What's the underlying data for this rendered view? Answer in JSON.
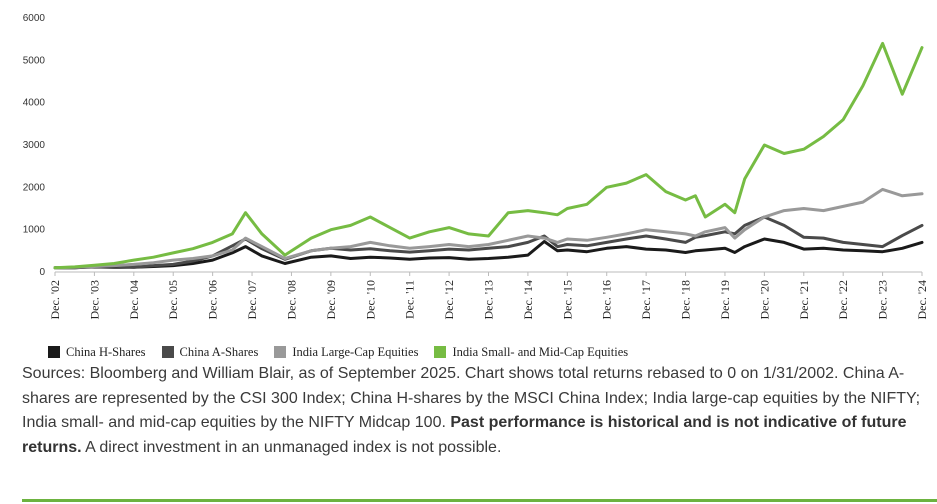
{
  "chart_data": {
    "type": "line",
    "title": "",
    "xlabel": "",
    "ylabel": "",
    "ylim": [
      0,
      6000
    ],
    "yticks": [
      0,
      1000,
      2000,
      3000,
      4000,
      5000,
      6000
    ],
    "xlim": [
      "2002-12",
      "2024-12"
    ],
    "xticks": [
      "Dec. '02",
      "Dec. '03",
      "Dec. '04",
      "Dec. '05",
      "Dec. '06",
      "Dec. '07",
      "Dec. '08",
      "Dec. '09",
      "Dec. '10",
      "Dec. '11",
      "Dec. '12",
      "Dec. '13",
      "Dec. '14",
      "Dec. '15",
      "Dec. '16",
      "Dec. '17",
      "Dec. '18",
      "Dec. '19",
      "Dec. '20",
      "Dec. '21",
      "Dec. '22",
      "Dec. '23",
      "Dec. '24"
    ],
    "grid": false,
    "legend_position": "bottom-left",
    "x": [
      "2002-12",
      "2003-06",
      "2003-12",
      "2004-06",
      "2004-12",
      "2005-06",
      "2005-12",
      "2006-06",
      "2006-12",
      "2007-06",
      "2007-10",
      "2008-03",
      "2008-10",
      "2009-06",
      "2009-12",
      "2010-06",
      "2010-12",
      "2011-06",
      "2011-12",
      "2012-06",
      "2012-12",
      "2013-06",
      "2013-12",
      "2014-06",
      "2014-12",
      "2015-05",
      "2015-09",
      "2015-12",
      "2016-06",
      "2016-12",
      "2017-06",
      "2017-12",
      "2018-06",
      "2018-12",
      "2019-03",
      "2019-06",
      "2019-12",
      "2020-03",
      "2020-06",
      "2020-12",
      "2021-06",
      "2021-12",
      "2022-06",
      "2022-12",
      "2023-06",
      "2023-12",
      "2024-06",
      "2024-12"
    ],
    "series": [
      {
        "name": "China H-Shares",
        "color": "#1a1a1a",
        "values": [
          100,
          100,
          120,
          110,
          110,
          130,
          150,
          200,
          280,
          450,
          600,
          380,
          200,
          350,
          380,
          320,
          350,
          330,
          300,
          330,
          340,
          300,
          320,
          350,
          400,
          720,
          500,
          520,
          480,
          560,
          600,
          540,
          520,
          460,
          500,
          520,
          560,
          460,
          600,
          780,
          700,
          540,
          560,
          520,
          500,
          480,
          560,
          700
        ]
      },
      {
        "name": "China A-Shares",
        "color": "#4a4a4a",
        "values": [
          100,
          100,
          130,
          140,
          110,
          150,
          180,
          260,
          380,
          620,
          780,
          550,
          300,
          500,
          560,
          520,
          550,
          500,
          470,
          500,
          540,
          520,
          560,
          600,
          700,
          850,
          600,
          650,
          620,
          700,
          780,
          850,
          780,
          700,
          820,
          860,
          950,
          900,
          1100,
          1300,
          1100,
          820,
          800,
          700,
          650,
          600,
          860,
          1100
        ]
      },
      {
        "name": "India Large-Cap Equities",
        "color": "#999999",
        "values": [
          100,
          110,
          130,
          150,
          180,
          220,
          280,
          320,
          380,
          520,
          800,
          600,
          320,
          500,
          560,
          600,
          700,
          620,
          560,
          600,
          650,
          600,
          650,
          750,
          850,
          800,
          700,
          780,
          750,
          820,
          900,
          1000,
          950,
          900,
          850,
          950,
          1050,
          800,
          1000,
          1300,
          1450,
          1500,
          1450,
          1550,
          1650,
          1950,
          1800,
          1850
        ]
      },
      {
        "name": "India Small- and Mid-Cap Equities",
        "color": "#76bc43",
        "values": [
          100,
          120,
          160,
          200,
          280,
          350,
          450,
          550,
          700,
          900,
          1400,
          900,
          400,
          800,
          1000,
          1100,
          1300,
          1050,
          800,
          950,
          1050,
          900,
          850,
          1400,
          1450,
          1400,
          1350,
          1500,
          1600,
          2000,
          2100,
          2300,
          1900,
          1700,
          1800,
          1300,
          1600,
          1400,
          2200,
          3000,
          2800,
          2900,
          3200,
          3600,
          4400,
          5400,
          4200,
          5300
        ]
      }
    ]
  },
  "legend": {
    "items": [
      {
        "label": "China H-Shares",
        "color": "#1a1a1a"
      },
      {
        "label": "China A-Shares",
        "color": "#4a4a4a"
      },
      {
        "label": "India Large-Cap Equities",
        "color": "#999999"
      },
      {
        "label": "India Small- and Mid-Cap Equities",
        "color": "#76bc43"
      }
    ]
  },
  "caption": {
    "text_1": "Sources: Bloomberg and William Blair, as of September 2025. Chart shows total returns rebased to 0 on 1/31/2002. China A-shares are represented by the CSI 300 Index; China H-shares by the MSCI China Index; India large-cap equities by the NIFTY; India small- and mid-cap equities by the NIFTY Midcap 100. ",
    "bold": "Past performance is historical and is not indicative of future returns.",
    "text_2": " A direct investment in an unmanaged index is not possible."
  },
  "colors": {
    "accent_rule": "#6cb33f"
  }
}
